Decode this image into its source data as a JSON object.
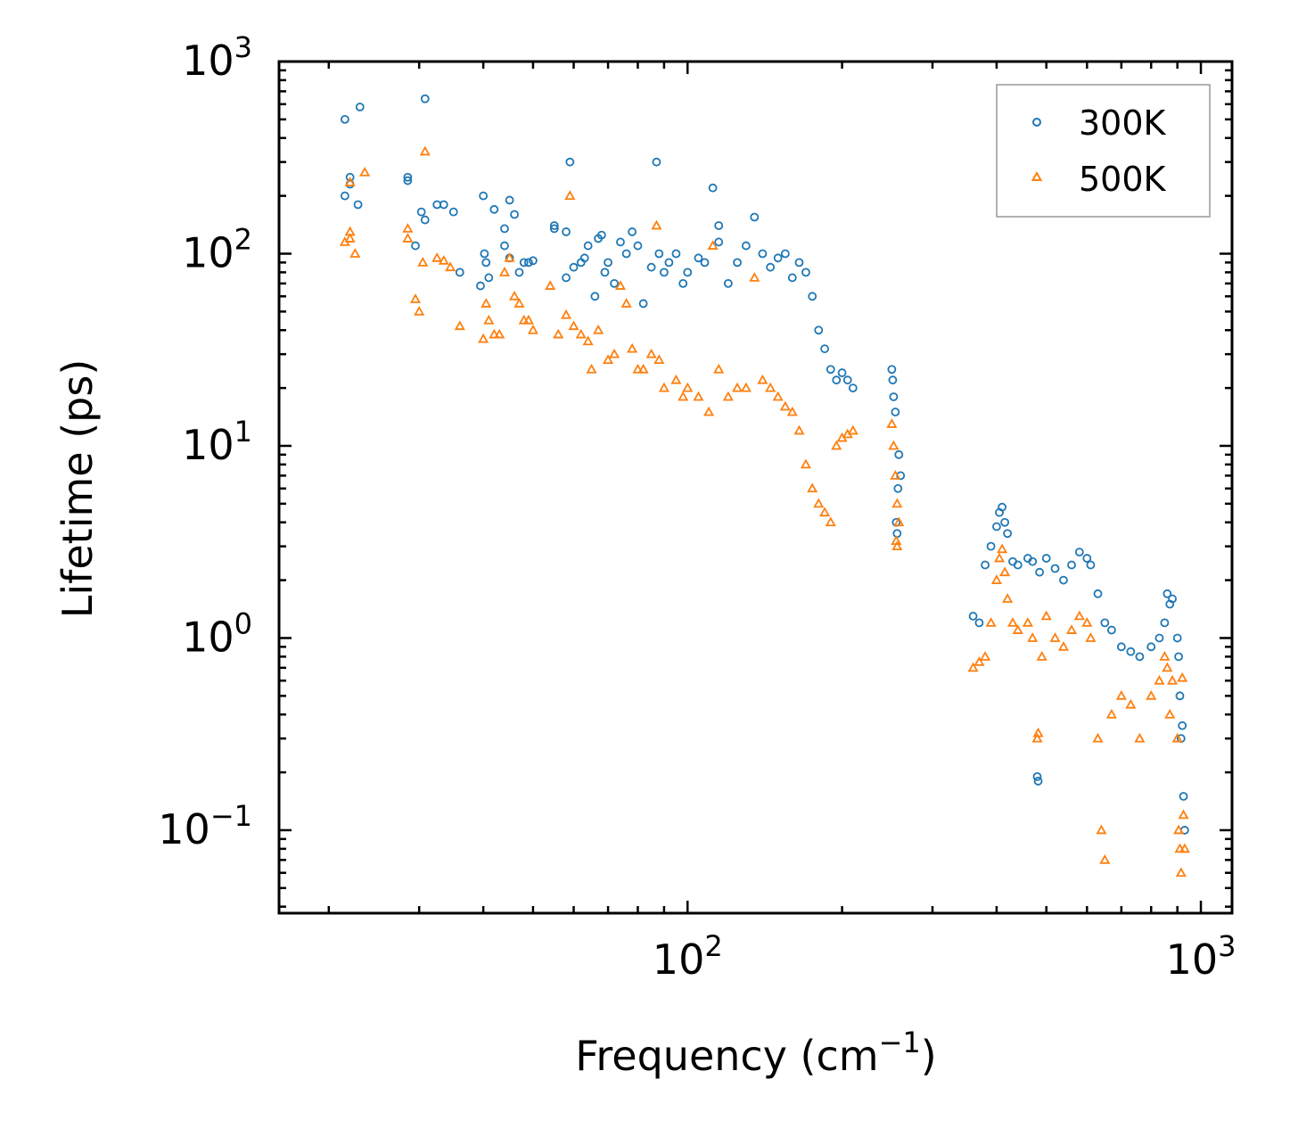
{
  "chart_data": {
    "type": "scatter",
    "title": "",
    "xlabel": "Frequency (cm",
    "xlabel_sup": "−1",
    "xlabel_end": ")",
    "ylabel": "Lifetime (ps)",
    "xscale": "log",
    "yscale": "log",
    "xlim": [
      16,
      1150
    ],
    "ylim": [
      0.037,
      1000
    ],
    "x_ticks": [
      {
        "value": 100,
        "base": "10",
        "exp": "2"
      },
      {
        "value": 1000,
        "base": "10",
        "exp": "3"
      }
    ],
    "y_ticks": [
      {
        "value": 0.1,
        "base": "10",
        "exp": "−1"
      },
      {
        "value": 1,
        "base": "10",
        "exp": "0"
      },
      {
        "value": 10,
        "base": "10",
        "exp": "1"
      },
      {
        "value": 100,
        "base": "10",
        "exp": "2"
      },
      {
        "value": 1000,
        "base": "10",
        "exp": "3"
      }
    ],
    "legend_position": "top-right",
    "series": [
      {
        "name": "300K",
        "marker": "circle",
        "color": "#1f77b4",
        "points": [
          [
            21.5,
            200
          ],
          [
            22,
            250
          ],
          [
            22,
            230
          ],
          [
            21.5,
            500
          ],
          [
            23,
            580
          ],
          [
            22.8,
            180
          ],
          [
            28.5,
            250
          ],
          [
            28.5,
            240
          ],
          [
            29.5,
            110
          ],
          [
            30.3,
            165
          ],
          [
            30.8,
            150
          ],
          [
            30.8,
            640
          ],
          [
            32.5,
            180
          ],
          [
            33.5,
            180
          ],
          [
            35,
            165
          ],
          [
            36,
            80
          ],
          [
            39.5,
            68
          ],
          [
            40,
            200
          ],
          [
            40.2,
            100
          ],
          [
            40.5,
            90
          ],
          [
            41,
            75
          ],
          [
            42,
            170
          ],
          [
            44,
            135
          ],
          [
            44,
            110
          ],
          [
            45,
            190
          ],
          [
            45,
            95
          ],
          [
            46,
            160
          ],
          [
            47,
            80
          ],
          [
            48,
            90
          ],
          [
            49,
            90
          ],
          [
            50,
            92
          ],
          [
            55,
            140
          ],
          [
            55,
            135
          ],
          [
            58,
            130
          ],
          [
            58,
            75
          ],
          [
            59,
            300
          ],
          [
            60,
            85
          ],
          [
            62,
            90
          ],
          [
            63,
            95
          ],
          [
            64,
            110
          ],
          [
            66,
            60
          ],
          [
            67,
            120
          ],
          [
            68,
            125
          ],
          [
            69,
            80
          ],
          [
            70,
            90
          ],
          [
            72,
            70
          ],
          [
            74,
            115
          ],
          [
            76,
            100
          ],
          [
            78,
            130
          ],
          [
            80,
            110
          ],
          [
            82,
            55
          ],
          [
            85,
            85
          ],
          [
            87,
            300
          ],
          [
            88,
            100
          ],
          [
            90,
            80
          ],
          [
            92,
            90
          ],
          [
            95,
            100
          ],
          [
            98,
            70
          ],
          [
            100,
            80
          ],
          [
            105,
            95
          ],
          [
            108,
            90
          ],
          [
            112,
            220
          ],
          [
            115,
            140
          ],
          [
            115,
            115
          ],
          [
            120,
            70
          ],
          [
            125,
            90
          ],
          [
            130,
            110
          ],
          [
            135,
            155
          ],
          [
            140,
            100
          ],
          [
            145,
            85
          ],
          [
            150,
            95
          ],
          [
            155,
            100
          ],
          [
            160,
            75
          ],
          [
            165,
            90
          ],
          [
            170,
            80
          ],
          [
            175,
            60
          ],
          [
            180,
            40
          ],
          [
            185,
            32
          ],
          [
            190,
            25
          ],
          [
            195,
            22
          ],
          [
            200,
            24
          ],
          [
            205,
            22
          ],
          [
            210,
            20
          ],
          [
            250,
            25
          ],
          [
            251,
            22
          ],
          [
            252,
            18
          ],
          [
            254,
            15
          ],
          [
            258,
            9
          ],
          [
            260,
            7
          ],
          [
            257,
            6
          ],
          [
            255,
            4
          ],
          [
            256,
            3.5
          ],
          [
            360,
            1.3
          ],
          [
            370,
            1.2
          ],
          [
            380,
            2.4
          ],
          [
            390,
            3.0
          ],
          [
            400,
            3.8
          ],
          [
            405,
            4.5
          ],
          [
            410,
            4.8
          ],
          [
            415,
            4.0
          ],
          [
            420,
            3.5
          ],
          [
            430,
            2.5
          ],
          [
            440,
            2.4
          ],
          [
            460,
            2.6
          ],
          [
            470,
            2.5
          ],
          [
            480,
            0.19
          ],
          [
            482,
            0.18
          ],
          [
            485,
            2.2
          ],
          [
            500,
            2.6
          ],
          [
            520,
            2.3
          ],
          [
            540,
            2.0
          ],
          [
            560,
            2.4
          ],
          [
            580,
            2.8
          ],
          [
            600,
            2.6
          ],
          [
            610,
            2.4
          ],
          [
            630,
            1.7
          ],
          [
            650,
            1.2
          ],
          [
            670,
            1.1
          ],
          [
            700,
            0.9
          ],
          [
            730,
            0.85
          ],
          [
            760,
            0.8
          ],
          [
            800,
            0.9
          ],
          [
            830,
            1.0
          ],
          [
            850,
            1.2
          ],
          [
            860,
            1.7
          ],
          [
            870,
            1.5
          ],
          [
            880,
            1.6
          ],
          [
            900,
            1.0
          ],
          [
            905,
            0.8
          ],
          [
            910,
            0.5
          ],
          [
            915,
            0.3
          ],
          [
            920,
            0.35
          ],
          [
            925,
            0.15
          ],
          [
            930,
            0.1
          ]
        ]
      },
      {
        "name": "500K",
        "marker": "triangle",
        "color": "#ff7f0e",
        "points": [
          [
            21.5,
            115
          ],
          [
            22,
            130
          ],
          [
            22,
            120
          ],
          [
            22,
            235
          ],
          [
            22.5,
            100
          ],
          [
            23.5,
            265
          ],
          [
            28.5,
            135
          ],
          [
            28.5,
            120
          ],
          [
            29.5,
            58
          ],
          [
            30,
            50
          ],
          [
            30.5,
            90
          ],
          [
            30.8,
            340
          ],
          [
            32.5,
            95
          ],
          [
            33.5,
            92
          ],
          [
            34.5,
            85
          ],
          [
            36,
            42
          ],
          [
            40,
            36
          ],
          [
            40.5,
            55
          ],
          [
            41,
            45
          ],
          [
            42,
            38
          ],
          [
            43,
            38
          ],
          [
            44,
            80
          ],
          [
            45,
            95
          ],
          [
            46,
            60
          ],
          [
            47,
            55
          ],
          [
            48,
            45
          ],
          [
            49,
            45
          ],
          [
            50,
            40
          ],
          [
            54,
            68
          ],
          [
            56,
            38
          ],
          [
            58,
            48
          ],
          [
            59,
            200
          ],
          [
            60,
            42
          ],
          [
            62,
            38
          ],
          [
            64,
            35
          ],
          [
            65,
            25
          ],
          [
            67,
            40
          ],
          [
            70,
            28
          ],
          [
            72,
            30
          ],
          [
            74,
            68
          ],
          [
            76,
            55
          ],
          [
            78,
            32
          ],
          [
            80,
            25
          ],
          [
            82,
            25
          ],
          [
            85,
            30
          ],
          [
            87,
            140
          ],
          [
            88,
            28
          ],
          [
            90,
            20
          ],
          [
            95,
            22
          ],
          [
            98,
            18
          ],
          [
            100,
            20
          ],
          [
            105,
            18
          ],
          [
            110,
            15
          ],
          [
            112,
            110
          ],
          [
            115,
            25
          ],
          [
            120,
            18
          ],
          [
            125,
            20
          ],
          [
            130,
            20
          ],
          [
            135,
            75
          ],
          [
            140,
            22
          ],
          [
            145,
            20
          ],
          [
            150,
            18
          ],
          [
            155,
            16
          ],
          [
            160,
            15
          ],
          [
            165,
            12
          ],
          [
            170,
            8
          ],
          [
            175,
            6
          ],
          [
            180,
            5
          ],
          [
            185,
            4.5
          ],
          [
            190,
            4.0
          ],
          [
            195,
            10
          ],
          [
            200,
            11
          ],
          [
            205,
            11.5
          ],
          [
            210,
            12
          ],
          [
            250,
            13
          ],
          [
            252,
            10
          ],
          [
            254,
            7
          ],
          [
            256,
            5
          ],
          [
            258,
            4
          ],
          [
            255,
            3.2
          ],
          [
            256,
            3.0
          ],
          [
            360,
            0.7
          ],
          [
            370,
            0.75
          ],
          [
            380,
            0.8
          ],
          [
            390,
            1.2
          ],
          [
            400,
            2.0
          ],
          [
            405,
            2.6
          ],
          [
            410,
            2.9
          ],
          [
            415,
            2.2
          ],
          [
            420,
            1.6
          ],
          [
            430,
            1.2
          ],
          [
            440,
            1.1
          ],
          [
            460,
            1.2
          ],
          [
            470,
            1.0
          ],
          [
            480,
            0.3
          ],
          [
            482,
            0.32
          ],
          [
            490,
            0.8
          ],
          [
            500,
            1.3
          ],
          [
            520,
            1.0
          ],
          [
            540,
            0.9
          ],
          [
            560,
            1.1
          ],
          [
            580,
            1.3
          ],
          [
            600,
            1.2
          ],
          [
            610,
            1.0
          ],
          [
            630,
            0.3
          ],
          [
            640,
            0.1
          ],
          [
            650,
            0.07
          ],
          [
            670,
            0.4
          ],
          [
            700,
            0.5
          ],
          [
            730,
            0.45
          ],
          [
            760,
            0.3
          ],
          [
            800,
            0.5
          ],
          [
            830,
            0.6
          ],
          [
            850,
            0.8
          ],
          [
            860,
            0.7
          ],
          [
            870,
            0.4
          ],
          [
            880,
            0.6
          ],
          [
            900,
            0.3
          ],
          [
            905,
            0.1
          ],
          [
            910,
            0.08
          ],
          [
            915,
            0.06
          ],
          [
            920,
            0.62
          ],
          [
            925,
            0.12
          ],
          [
            930,
            0.08
          ]
        ]
      }
    ]
  }
}
